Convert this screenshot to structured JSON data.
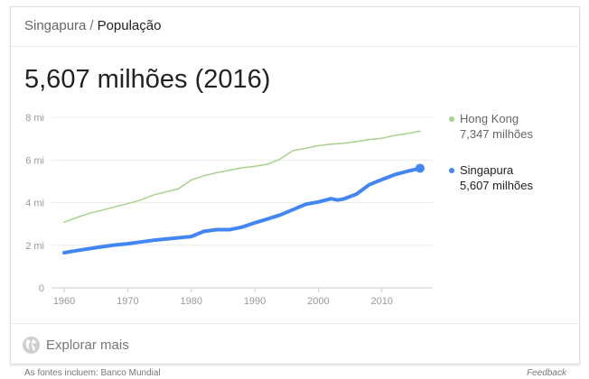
{
  "breadcrumb": {
    "country": "Singapura",
    "separator": "/",
    "topic": "População"
  },
  "headline": "5,607 milhões (2016)",
  "legend": [
    {
      "name": "Hong Kong",
      "value": "7,347 milhões",
      "color": "#a7d28d"
    },
    {
      "name": "Singapura",
      "value": "5,607 milhões",
      "color": "#4285f4"
    }
  ],
  "explore": {
    "label": "Explorar mais",
    "icon": "globe-icon"
  },
  "footer": {
    "sources": "As fontes incluem: Banco Mundial",
    "feedback": "Feedback"
  },
  "chart_data": {
    "type": "line",
    "title": "",
    "xlabel": "",
    "ylabel": "",
    "xlim": [
      1958,
      2018
    ],
    "ylim": [
      0,
      8
    ],
    "yticks": [
      0,
      2,
      4,
      6,
      8
    ],
    "ytick_labels": [
      "0",
      "2 mi",
      "4 mi",
      "6 mi",
      "8 mi"
    ],
    "xticks": [
      1960,
      1970,
      1980,
      1990,
      2000,
      2010
    ],
    "xtick_labels": [
      "1960",
      "1970",
      "1980",
      "1990",
      "2000",
      "2010"
    ],
    "grid": true,
    "series": [
      {
        "name": "Hong Kong",
        "color": "#a7d28d",
        "x": [
          1960,
          1962,
          1964,
          1966,
          1968,
          1970,
          1972,
          1974,
          1976,
          1978,
          1980,
          1982,
          1984,
          1986,
          1988,
          1990,
          1992,
          1994,
          1996,
          1998,
          2000,
          2002,
          2004,
          2006,
          2008,
          2010,
          2012,
          2014,
          2016
        ],
        "values": [
          3.08,
          3.3,
          3.5,
          3.65,
          3.8,
          3.95,
          4.12,
          4.35,
          4.5,
          4.65,
          5.06,
          5.26,
          5.4,
          5.52,
          5.63,
          5.7,
          5.8,
          6.04,
          6.44,
          6.55,
          6.67,
          6.74,
          6.78,
          6.86,
          6.96,
          7.02,
          7.15,
          7.24,
          7.35
        ]
      },
      {
        "name": "Singapura",
        "color": "#4285f4",
        "x": [
          1960,
          1962,
          1964,
          1966,
          1968,
          1970,
          1972,
          1974,
          1976,
          1978,
          1980,
          1982,
          1984,
          1986,
          1988,
          1990,
          1992,
          1994,
          1996,
          1998,
          2000,
          2002,
          2003,
          2004,
          2006,
          2008,
          2010,
          2012,
          2014,
          2016
        ],
        "values": [
          1.65,
          1.75,
          1.84,
          1.93,
          2.01,
          2.07,
          2.15,
          2.23,
          2.29,
          2.35,
          2.41,
          2.65,
          2.73,
          2.73,
          2.85,
          3.05,
          3.23,
          3.42,
          3.67,
          3.92,
          4.03,
          4.18,
          4.12,
          4.17,
          4.4,
          4.84,
          5.08,
          5.31,
          5.47,
          5.61
        ]
      }
    ]
  }
}
